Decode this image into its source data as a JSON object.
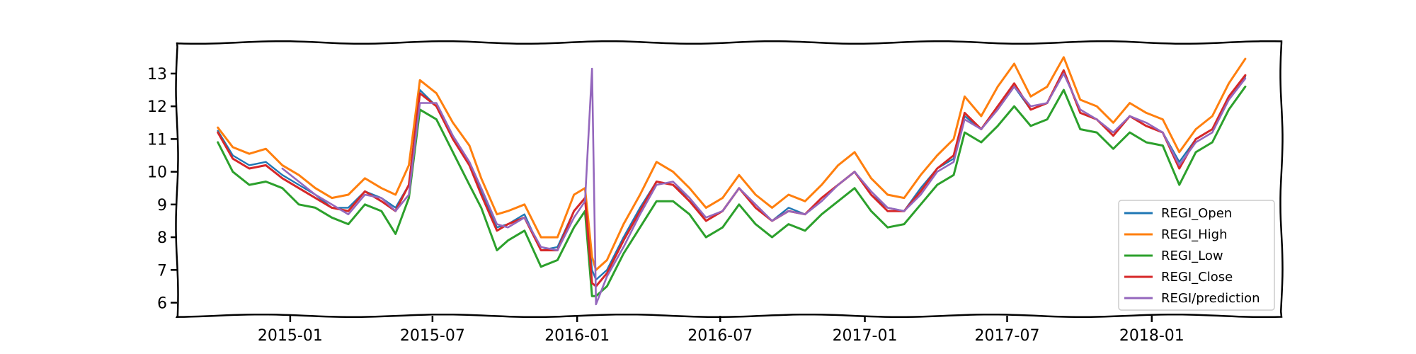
{
  "chart_data": {
    "type": "line",
    "title": "",
    "xlabel": "",
    "ylabel": "",
    "x_ticks": [
      "2015-01",
      "2015-07",
      "2016-01",
      "2016-07",
      "2017-01",
      "2017-07",
      "2018-01"
    ],
    "y_ticks": [
      "6",
      "7",
      "8",
      "9",
      "10",
      "11",
      "12",
      "13"
    ],
    "xlim": [
      "2014-08-10",
      "2018-06-15"
    ],
    "ylim": [
      5.6,
      13.95
    ],
    "grid": false,
    "legend_position": "lower-right",
    "x": [
      "2014-10-01",
      "2014-10-20",
      "2014-11-10",
      "2014-12-01",
      "2014-12-22",
      "2015-01-12",
      "2015-02-02",
      "2015-02-23",
      "2015-03-16",
      "2015-04-06",
      "2015-04-27",
      "2015-05-15",
      "2015-06-01",
      "2015-06-15",
      "2015-07-06",
      "2015-07-27",
      "2015-08-17",
      "2015-09-01",
      "2015-09-21",
      "2015-10-05",
      "2015-10-26",
      "2015-11-16",
      "2015-12-07",
      "2015-12-28",
      "2016-01-11",
      "2016-01-20",
      "2016-01-25",
      "2016-02-08",
      "2016-02-29",
      "2016-03-21",
      "2016-04-11",
      "2016-05-02",
      "2016-05-23",
      "2016-06-13",
      "2016-07-04",
      "2016-07-25",
      "2016-08-15",
      "2016-09-05",
      "2016-09-26",
      "2016-10-17",
      "2016-11-07",
      "2016-11-28",
      "2016-12-19",
      "2017-01-09",
      "2017-01-30",
      "2017-02-20",
      "2017-03-13",
      "2017-04-03",
      "2017-04-24",
      "2017-05-08",
      "2017-05-29",
      "2017-06-19",
      "2017-07-10",
      "2017-07-31",
      "2017-08-21",
      "2017-09-11",
      "2017-10-02",
      "2017-10-23",
      "2017-11-13",
      "2017-12-04",
      "2017-12-25",
      "2018-01-15",
      "2018-02-05",
      "2018-02-26",
      "2018-03-19",
      "2018-04-09",
      "2018-04-30"
    ],
    "series": [
      {
        "name": "REGI_Open",
        "color": "#1f77b4",
        "values": [
          11.25,
          10.5,
          10.2,
          10.3,
          9.9,
          9.6,
          9.3,
          8.9,
          8.9,
          9.4,
          9.2,
          8.9,
          9.6,
          12.5,
          12.0,
          11.0,
          10.2,
          9.4,
          8.3,
          8.4,
          8.7,
          7.6,
          7.7,
          8.8,
          9.2,
          7.0,
          6.7,
          7.0,
          8.0,
          8.9,
          9.7,
          9.6,
          9.2,
          8.5,
          8.8,
          9.5,
          8.9,
          8.5,
          8.9,
          8.7,
          9.2,
          9.6,
          10.0,
          9.3,
          8.9,
          8.8,
          9.5,
          10.1,
          10.4,
          11.7,
          11.3,
          12.0,
          12.6,
          11.9,
          12.1,
          13.1,
          11.8,
          11.6,
          11.1,
          11.7,
          11.4,
          11.2,
          10.3,
          11.0,
          11.3,
          12.3,
          12.9
        ]
      },
      {
        "name": "REGI_High",
        "color": "#ff7f0e",
        "values": [
          11.35,
          10.75,
          10.55,
          10.7,
          10.2,
          9.9,
          9.5,
          9.2,
          9.3,
          9.8,
          9.5,
          9.3,
          10.2,
          12.8,
          12.4,
          11.5,
          10.8,
          9.8,
          8.7,
          8.8,
          9.0,
          8.0,
          8.0,
          9.3,
          9.5,
          7.4,
          7.0,
          7.3,
          8.4,
          9.3,
          10.3,
          10.0,
          9.5,
          8.9,
          9.2,
          9.9,
          9.3,
          8.9,
          9.3,
          9.1,
          9.6,
          10.2,
          10.6,
          9.8,
          9.3,
          9.2,
          9.9,
          10.5,
          11.0,
          12.3,
          11.7,
          12.6,
          13.3,
          12.3,
          12.6,
          13.5,
          12.2,
          12.0,
          11.5,
          12.1,
          11.8,
          11.6,
          10.6,
          11.3,
          11.7,
          12.7,
          13.45
        ]
      },
      {
        "name": "REGI_Low",
        "color": "#2ca02c",
        "values": [
          10.9,
          10.0,
          9.6,
          9.7,
          9.5,
          9.0,
          8.9,
          8.6,
          8.4,
          9.0,
          8.8,
          8.1,
          9.2,
          11.9,
          11.6,
          10.6,
          9.6,
          8.9,
          7.6,
          7.9,
          8.2,
          7.1,
          7.3,
          8.3,
          8.8,
          6.2,
          6.2,
          6.5,
          7.5,
          8.3,
          9.1,
          9.1,
          8.7,
          8.0,
          8.3,
          9.0,
          8.4,
          8.0,
          8.4,
          8.2,
          8.7,
          9.1,
          9.5,
          8.8,
          8.3,
          8.4,
          9.0,
          9.6,
          9.9,
          11.2,
          10.9,
          11.4,
          12.0,
          11.4,
          11.6,
          12.5,
          11.3,
          11.2,
          10.7,
          11.2,
          10.9,
          10.8,
          9.6,
          10.6,
          10.9,
          11.9,
          12.6
        ]
      },
      {
        "name": "REGI_Close",
        "color": "#d62728",
        "values": [
          11.2,
          10.4,
          10.1,
          10.2,
          9.8,
          9.5,
          9.2,
          8.9,
          8.8,
          9.4,
          9.1,
          8.8,
          9.6,
          12.4,
          12.0,
          11.0,
          10.2,
          9.3,
          8.2,
          8.4,
          8.6,
          7.6,
          7.6,
          8.8,
          9.2,
          6.6,
          6.5,
          6.9,
          7.9,
          8.8,
          9.7,
          9.6,
          9.1,
          8.5,
          8.8,
          9.5,
          8.9,
          8.5,
          8.8,
          8.7,
          9.2,
          9.6,
          10.0,
          9.3,
          8.8,
          8.8,
          9.4,
          10.1,
          10.5,
          11.8,
          11.3,
          12.0,
          12.7,
          11.9,
          12.1,
          13.1,
          11.8,
          11.6,
          11.1,
          11.7,
          11.4,
          11.2,
          10.1,
          11.0,
          11.3,
          12.3,
          12.95
        ]
      },
      {
        "name": "REGI/prediction",
        "color": "#9467bd",
        "values": [
          null,
          null,
          null,
          null,
          10.1,
          9.7,
          9.3,
          9.0,
          8.7,
          9.3,
          9.2,
          8.8,
          9.3,
          12.1,
          12.1,
          11.1,
          10.3,
          9.5,
          8.4,
          8.3,
          8.6,
          7.7,
          7.6,
          8.6,
          9.1,
          13.15,
          5.95,
          6.8,
          7.7,
          8.7,
          9.6,
          9.7,
          9.2,
          8.6,
          8.8,
          9.5,
          9.0,
          8.5,
          8.8,
          8.7,
          9.1,
          9.6,
          10.0,
          9.4,
          8.9,
          8.8,
          9.3,
          10.0,
          10.3,
          11.6,
          11.3,
          11.9,
          12.6,
          12.0,
          12.1,
          13.0,
          11.9,
          11.6,
          11.2,
          11.7,
          11.5,
          11.2,
          10.2,
          10.9,
          11.2,
          12.2,
          12.85
        ]
      }
    ]
  }
}
